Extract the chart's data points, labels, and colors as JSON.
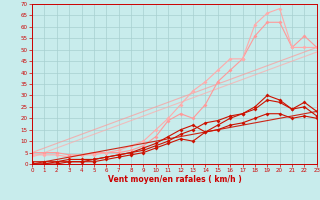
{
  "xlabel": "Vent moyen/en rafales ( km/h )",
  "background_color": "#c8ecec",
  "grid_color": "#a8d0d0",
  "x": [
    0,
    1,
    2,
    3,
    4,
    5,
    6,
    7,
    8,
    9,
    10,
    11,
    12,
    13,
    14,
    15,
    16,
    17,
    18,
    19,
    20,
    21,
    22,
    23
  ],
  "pink_line1_color": "#ff9999",
  "pink_line2_color": "#ffaaaa",
  "dark_line_color": "#cc1100",
  "pink1_y": [
    5,
    5,
    5,
    4,
    4,
    5,
    5,
    5,
    6,
    8,
    12,
    19,
    22,
    20,
    26,
    36,
    41,
    46,
    56,
    62,
    62,
    51,
    56,
    51
  ],
  "pink2_y": [
    4,
    4,
    4,
    3,
    4,
    4,
    5,
    6,
    8,
    10,
    15,
    20,
    26,
    32,
    36,
    41,
    46,
    46,
    61,
    66,
    68,
    51,
    51,
    51
  ],
  "pink_linear1": [
    5,
    7,
    9,
    11,
    13,
    15,
    17,
    19,
    21,
    23,
    25,
    27,
    29,
    31,
    33,
    35,
    37,
    39,
    41,
    43,
    45,
    47,
    49,
    51
  ],
  "pink_linear2": [
    3,
    5,
    7,
    9,
    11,
    13,
    15,
    17,
    19,
    21,
    23,
    25,
    27,
    29,
    31,
    33,
    35,
    37,
    39,
    41,
    43,
    45,
    47,
    49
  ],
  "dark1_y": [
    1,
    1,
    1,
    2,
    2,
    2,
    3,
    4,
    5,
    7,
    9,
    12,
    15,
    17,
    14,
    17,
    20,
    22,
    25,
    30,
    28,
    24,
    27,
    23
  ],
  "dark2_y": [
    0,
    0,
    1,
    1,
    1,
    2,
    3,
    4,
    5,
    6,
    8,
    10,
    13,
    15,
    18,
    19,
    21,
    22,
    24,
    28,
    27,
    24,
    25,
    21
  ],
  "dark3_y": [
    0,
    0,
    0,
    1,
    1,
    1,
    2,
    3,
    4,
    5,
    7,
    9,
    11,
    10,
    14,
    15,
    17,
    18,
    20,
    22,
    22,
    20,
    21,
    20
  ],
  "dark_linear": [
    0,
    1,
    2,
    3,
    4,
    5,
    6,
    7,
    8,
    9,
    10,
    11,
    12,
    13,
    14,
    15,
    16,
    17,
    18,
    19,
    20,
    21,
    22,
    23
  ],
  "ylim": [
    0,
    70
  ],
  "xlim": [
    0,
    23
  ],
  "yticks": [
    0,
    5,
    10,
    15,
    20,
    25,
    30,
    35,
    40,
    45,
    50,
    55,
    60,
    65,
    70
  ],
  "xticks": [
    0,
    1,
    2,
    3,
    4,
    5,
    6,
    7,
    8,
    9,
    10,
    11,
    12,
    13,
    14,
    15,
    16,
    17,
    18,
    19,
    20,
    21,
    22,
    23
  ]
}
